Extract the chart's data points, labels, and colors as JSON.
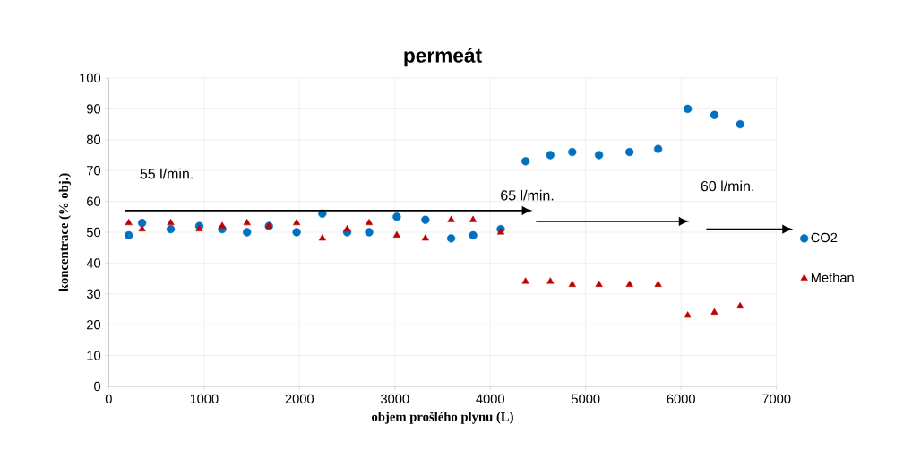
{
  "chart_data": {
    "type": "scatter",
    "title": "permeát",
    "xlabel": "objem prošlého plynu  (L)",
    "ylabel": "koncentrace (% obj.)",
    "x": [
      210,
      350,
      650,
      950,
      1190,
      1450,
      1680,
      1970,
      2240,
      2500,
      2730,
      3020,
      3320,
      3590,
      3820,
      4110,
      4370,
      4630,
      4860,
      5140,
      5460,
      5760,
      6070,
      6350,
      6620
    ],
    "series": [
      {
        "name": "CO2",
        "color": "#0070c0",
        "marker": "circle",
        "values": [
          49,
          53,
          51,
          52,
          51,
          50,
          52,
          50,
          56,
          50,
          50,
          55,
          54,
          48,
          49,
          51,
          73,
          75,
          76,
          75,
          76,
          77,
          90,
          88,
          85
        ]
      },
      {
        "name": "Methan",
        "color": "#c00000",
        "marker": "triangle",
        "values": [
          53,
          51,
          53,
          51,
          52,
          53,
          52,
          53,
          48,
          51,
          53,
          49,
          48,
          54,
          54,
          50,
          34,
          34,
          33,
          33,
          33,
          33,
          23,
          24,
          26
        ]
      }
    ],
    "xlim": [
      0,
      7000
    ],
    "ylim": [
      0,
      100
    ],
    "xticks": [
      0,
      1000,
      2000,
      3000,
      4000,
      5000,
      6000,
      7000
    ],
    "yticks": [
      0,
      10,
      20,
      30,
      40,
      50,
      60,
      70,
      80,
      90,
      100
    ],
    "grid": true,
    "legend": "right",
    "annotations": [
      "55 l/min.",
      "65 l/min.",
      "60 l/min."
    ]
  }
}
